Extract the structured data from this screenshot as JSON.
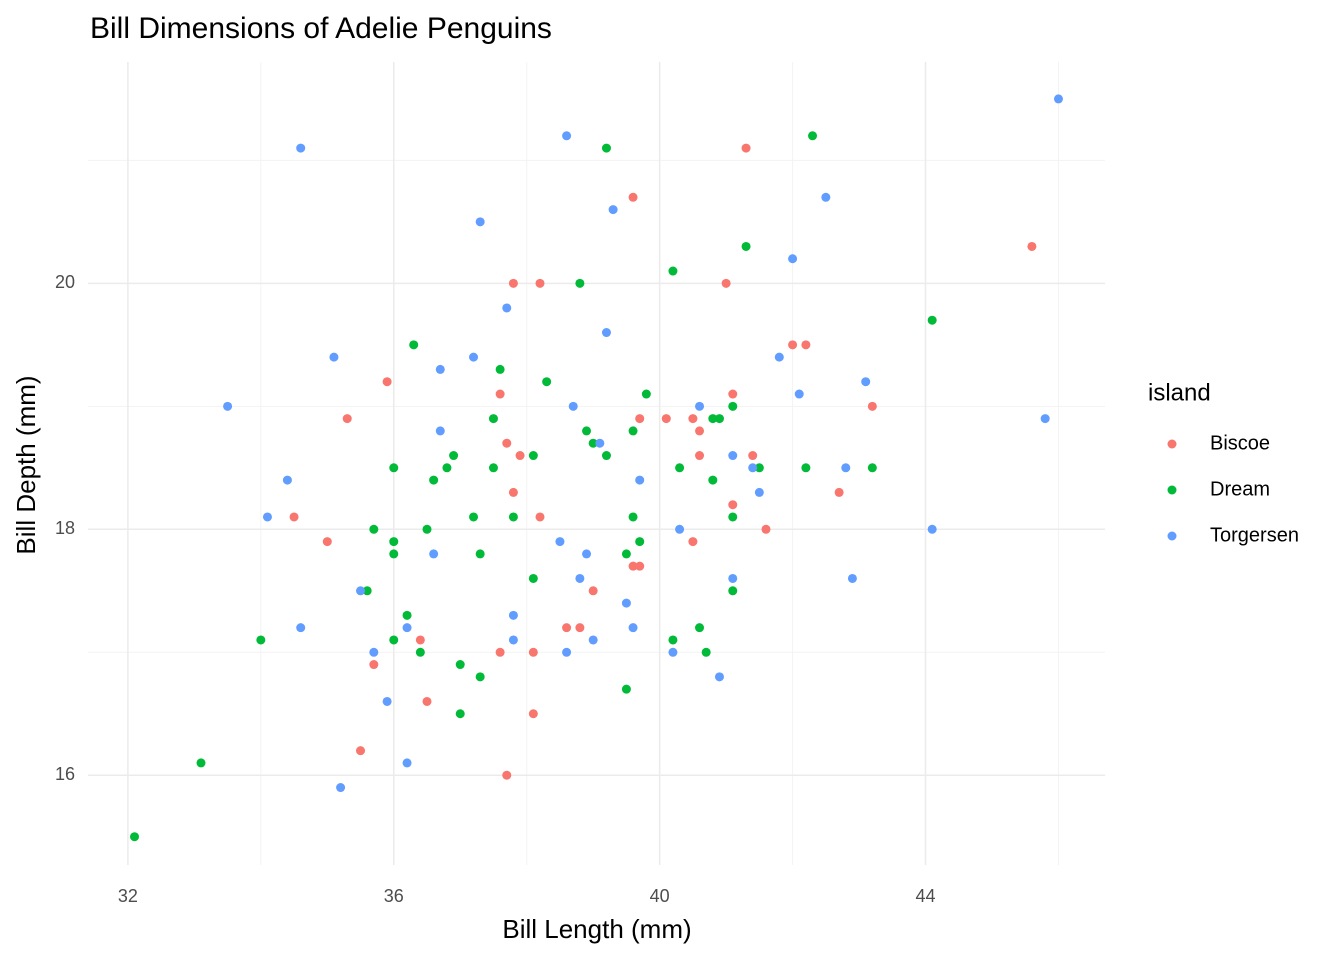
{
  "chart_data": {
    "type": "scatter",
    "title": "Bill Dimensions of Adelie Penguins",
    "x_label": "Bill Length (mm)",
    "y_label": "Bill Depth (mm)",
    "legend_title": "island",
    "xlim": [
      31.4,
      46.7
    ],
    "ylim": [
      15.27,
      21.8
    ],
    "xticks": [
      32,
      36,
      40,
      44
    ],
    "yticks": [
      16,
      18,
      20
    ],
    "xminor": [
      34,
      38,
      42,
      46
    ],
    "yminor": [
      17,
      19,
      21
    ],
    "grid": true,
    "legend": "right",
    "series": [
      {
        "name": "Biscoe",
        "color": "#F8766D",
        "x": [
          41.3,
          39.6,
          37.8,
          38.2,
          41.0,
          45.6,
          42.0,
          42.2,
          35.9,
          37.6,
          41.1,
          43.2,
          35.3,
          39.7,
          40.1,
          40.5,
          37.7,
          40.6,
          37.9,
          40.6,
          41.4,
          37.8,
          42.7,
          41.1,
          34.5,
          38.2,
          41.6,
          35.0,
          40.5,
          39.6,
          39.7,
          39.0,
          38.6,
          38.8,
          36.4,
          37.6,
          38.1,
          35.7,
          36.5,
          38.1,
          35.5,
          37.7
        ],
        "values": [
          21.1,
          20.7,
          20.0,
          20.0,
          20.0,
          20.3,
          19.5,
          19.5,
          19.2,
          19.1,
          19.1,
          19.0,
          18.9,
          18.9,
          18.9,
          18.9,
          18.7,
          18.8,
          18.6,
          18.6,
          18.6,
          18.3,
          18.3,
          18.2,
          18.1,
          18.1,
          18.0,
          17.9,
          17.9,
          17.7,
          17.7,
          17.5,
          17.2,
          17.2,
          17.1,
          17.0,
          17.0,
          16.9,
          16.6,
          16.5,
          16.2,
          16.0
        ]
      },
      {
        "name": "Dream",
        "color": "#00BA38",
        "x": [
          42.3,
          39.2,
          41.3,
          40.2,
          38.8,
          44.1,
          36.3,
          37.6,
          38.3,
          39.8,
          41.1,
          37.5,
          40.8,
          40.9,
          38.9,
          39.6,
          39.0,
          36.9,
          38.1,
          39.2,
          36.0,
          36.8,
          37.5,
          40.3,
          41.5,
          42.2,
          43.2,
          36.6,
          40.8,
          37.2,
          37.8,
          39.6,
          41.1,
          35.7,
          36.5,
          36.0,
          39.7,
          36.0,
          37.3,
          39.5,
          38.1,
          35.6,
          41.1,
          36.2,
          40.6,
          34.0,
          36.0,
          40.2,
          36.4,
          40.7,
          37.0,
          37.3,
          39.5,
          37.0,
          33.1,
          32.1
        ],
        "values": [
          21.2,
          21.1,
          20.3,
          20.1,
          20.0,
          19.7,
          19.5,
          19.3,
          19.2,
          19.1,
          19.0,
          18.9,
          18.9,
          18.9,
          18.8,
          18.8,
          18.7,
          18.6,
          18.6,
          18.6,
          18.5,
          18.5,
          18.5,
          18.5,
          18.5,
          18.5,
          18.5,
          18.4,
          18.4,
          18.1,
          18.1,
          18.1,
          18.1,
          18.0,
          18.0,
          17.9,
          17.9,
          17.8,
          17.8,
          17.8,
          17.6,
          17.5,
          17.5,
          17.3,
          17.2,
          17.1,
          17.1,
          17.1,
          17.0,
          17.0,
          16.9,
          16.8,
          16.7,
          16.5,
          16.1,
          15.5
        ]
      },
      {
        "name": "Torgersen",
        "color": "#619CFF",
        "x": [
          46.0,
          38.6,
          34.6,
          42.5,
          39.3,
          37.3,
          42.0,
          37.7,
          39.2,
          35.1,
          37.2,
          41.8,
          36.7,
          43.1,
          42.1,
          33.5,
          38.7,
          40.6,
          45.8,
          36.7,
          39.1,
          41.1,
          34.4,
          39.7,
          41.4,
          42.8,
          41.5,
          34.1,
          40.3,
          44.1,
          38.5,
          36.6,
          38.9,
          38.8,
          41.1,
          42.9,
          35.5,
          39.5,
          37.8,
          34.6,
          36.2,
          39.6,
          37.8,
          39.0,
          35.7,
          38.6,
          40.2,
          40.9,
          35.9,
          36.2,
          35.2
        ],
        "values": [
          21.5,
          21.2,
          21.1,
          20.7,
          20.6,
          20.5,
          20.2,
          19.8,
          19.6,
          19.4,
          19.4,
          19.4,
          19.3,
          19.2,
          19.1,
          19.0,
          19.0,
          19.0,
          18.9,
          18.8,
          18.7,
          18.6,
          18.4,
          18.4,
          18.5,
          18.5,
          18.3,
          18.1,
          18.0,
          18.0,
          17.9,
          17.8,
          17.8,
          17.6,
          17.6,
          17.6,
          17.5,
          17.4,
          17.3,
          17.2,
          17.2,
          17.2,
          17.1,
          17.1,
          17.0,
          17.0,
          17.0,
          16.8,
          16.6,
          16.1,
          15.9
        ]
      }
    ]
  }
}
